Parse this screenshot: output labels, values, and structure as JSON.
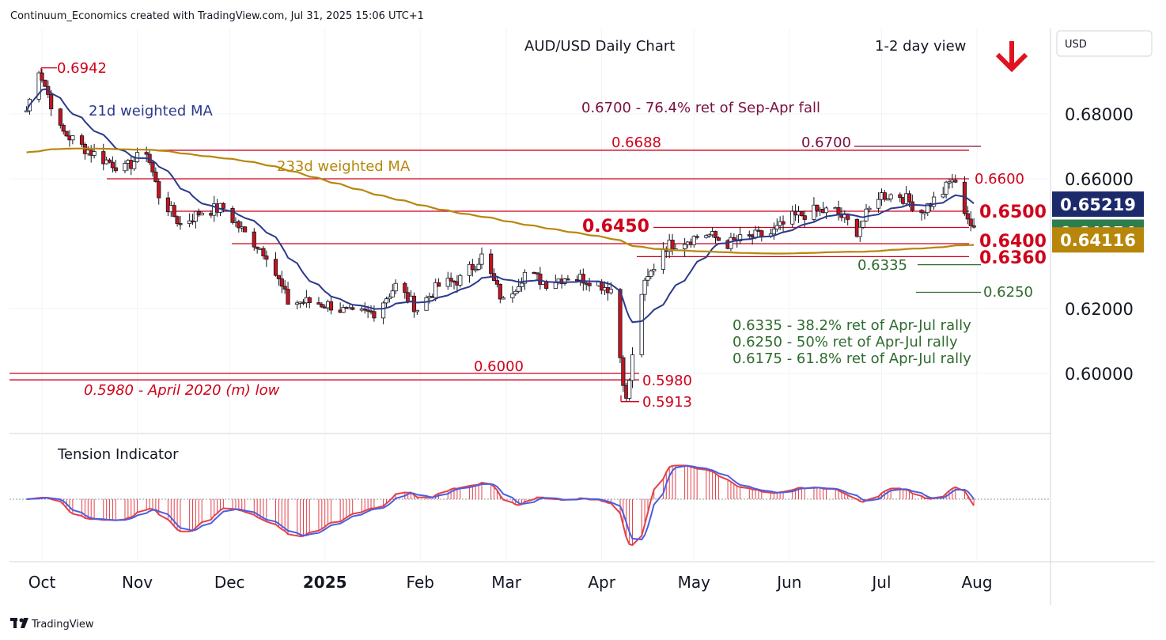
{
  "header": {
    "attribution": "Continuum_Economics created with TradingView.com, Jul 31, 2025 15:06 UTC+1",
    "title": "AUD/USD Daily Chart",
    "view": "1-2 day view",
    "currency": "USD",
    "footer_brand": "TradingView"
  },
  "colors": {
    "up": "#ffffff",
    "down": "#c2141e",
    "wick": "#131722",
    "ma21": "#2b3a8c",
    "ma233": "#b8860b",
    "level": "#d0021b",
    "fib": "#2e6b2e",
    "fib700": "#7a1040",
    "tension_fill": "#e2414a",
    "tension_line": "#4a5fe0",
    "tag_blue": "#1c2a6b",
    "tag_green": "#2e7d4f",
    "tag_gold": "#b8860b"
  },
  "chart_data": {
    "type": "candlestick",
    "title": "AUD/USD Daily Chart",
    "y_axis": {
      "ticks": [
        "0.68000",
        "0.66000",
        "0.62000",
        "0.60000"
      ],
      "range": [
        0.588,
        0.694
      ]
    },
    "x_axis": {
      "ticks": [
        "Oct",
        "Nov",
        "Dec",
        "2025",
        "Feb",
        "Mar",
        "Apr",
        "May",
        "Jun",
        "Jul",
        "Aug"
      ]
    },
    "price_tags": [
      "0.65219",
      "0.64354",
      "0.64116"
    ],
    "ohlc_path": [
      [
        "2024-09-26",
        0.681
      ],
      [
        "2024-09-30",
        0.6942
      ],
      [
        "2024-10-07",
        0.675
      ],
      [
        "2024-10-14",
        0.67
      ],
      [
        "2024-10-21",
        0.666
      ],
      [
        "2024-10-28",
        0.663
      ],
      [
        "2024-11-04",
        0.6688
      ],
      [
        "2024-11-08",
        0.655
      ],
      [
        "2024-11-15",
        0.646
      ],
      [
        "2024-11-22",
        0.65
      ],
      [
        "2024-11-29",
        0.651
      ],
      [
        "2024-12-06",
        0.643
      ],
      [
        "2024-12-13",
        0.637
      ],
      [
        "2024-12-20",
        0.622
      ],
      [
        "2024-12-27",
        0.622
      ],
      [
        "2025-01-03",
        0.621
      ],
      [
        "2025-01-10",
        0.618
      ],
      [
        "2025-01-17",
        0.619
      ],
      [
        "2025-01-24",
        0.627
      ],
      [
        "2025-01-31",
        0.62
      ],
      [
        "2025-02-07",
        0.627
      ],
      [
        "2025-02-14",
        0.629
      ],
      [
        "2025-02-21",
        0.636
      ],
      [
        "2025-02-28",
        0.622
      ],
      [
        "2025-03-07",
        0.631
      ],
      [
        "2025-03-14",
        0.628
      ],
      [
        "2025-03-21",
        0.63
      ],
      [
        "2025-03-28",
        0.629
      ],
      [
        "2025-04-04",
        0.626
      ],
      [
        "2025-04-09",
        0.5913
      ],
      [
        "2025-04-14",
        0.625
      ],
      [
        "2025-04-21",
        0.639
      ],
      [
        "2025-04-28",
        0.641
      ],
      [
        "2025-05-05",
        0.643
      ],
      [
        "2025-05-12",
        0.64
      ],
      [
        "2025-05-19",
        0.642
      ],
      [
        "2025-05-26",
        0.643
      ],
      [
        "2025-06-02",
        0.648
      ],
      [
        "2025-06-09",
        0.65
      ],
      [
        "2025-06-16",
        0.65
      ],
      [
        "2025-06-23",
        0.644
      ],
      [
        "2025-06-30",
        0.655
      ],
      [
        "2025-07-07",
        0.655
      ],
      [
        "2025-07-14",
        0.65
      ],
      [
        "2025-07-21",
        0.656
      ],
      [
        "2025-07-24",
        0.66
      ],
      [
        "2025-07-31",
        0.6435
      ]
    ],
    "series": [
      {
        "name": "21d weighted MA"
      },
      {
        "name": "233d weighted MA"
      }
    ],
    "levels": [
      {
        "label": "0.6942",
        "value": 0.6942
      },
      {
        "label": "0.6700",
        "value": 0.67
      },
      {
        "label": "0.6688",
        "value": 0.6688
      },
      {
        "label": "0.6600",
        "value": 0.66
      },
      {
        "label": "0.6500",
        "value": 0.65
      },
      {
        "label": "0.6450",
        "value": 0.645
      },
      {
        "label": "0.6400",
        "value": 0.64
      },
      {
        "label": "0.6360",
        "value": 0.636
      },
      {
        "label": "0.6335",
        "value": 0.6335
      },
      {
        "label": "0.6250",
        "value": 0.625
      },
      {
        "label": "0.6000",
        "value": 0.6
      },
      {
        "label": "0.5980",
        "value": 0.598
      },
      {
        "label": "0.5913",
        "value": 0.5913
      }
    ],
    "annotations": [
      "0.6700 - 76.4% ret of Sep-Apr fall",
      "0.5980 - April 2020 (m) low",
      "0.6335 - 38.2% ret of Apr-Jul rally",
      "0.6250 - 50% ret of Apr-Jul rally",
      "0.6175 - 61.8% ret of Apr-Jul rally"
    ],
    "indicator": {
      "name": "Tension Indicator"
    },
    "bias": "down"
  }
}
